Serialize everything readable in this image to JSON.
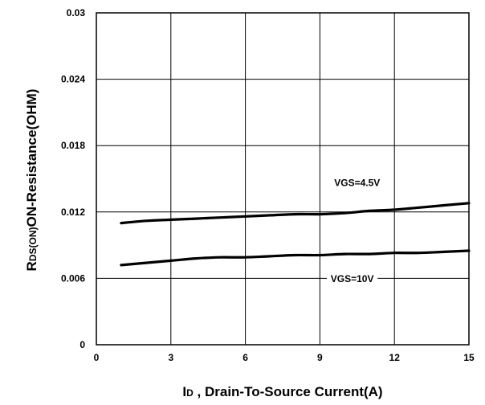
{
  "chart_data": {
    "type": "line",
    "title": "",
    "xlabel": {
      "main": "I",
      "sub": "D",
      "rest": " , Drain-To-Source Current(A)"
    },
    "ylabel": {
      "main": "R",
      "sub": "DS(ON)",
      "rest": "ON-Resistance(OHM)"
    },
    "xlim": [
      0,
      15
    ],
    "ylim": [
      0,
      0.03
    ],
    "xticks": [
      "0",
      "3",
      "6",
      "9",
      "12",
      "15"
    ],
    "yticks": [
      "0",
      "0.006",
      "0.012",
      "0.018",
      "0.024",
      "0.03"
    ],
    "grid": true,
    "series": [
      {
        "name": "VGS=4.5V",
        "x": [
          1,
          2,
          3,
          4,
          5,
          6,
          7,
          8,
          9,
          10,
          11,
          12,
          13,
          14,
          15
        ],
        "y": [
          0.011,
          0.0112,
          0.0113,
          0.0114,
          0.0115,
          0.0116,
          0.0117,
          0.0118,
          0.0118,
          0.0119,
          0.0121,
          0.0122,
          0.0124,
          0.0126,
          0.0128
        ]
      },
      {
        "name": "VGS=10V",
        "x": [
          1,
          2,
          3,
          4,
          5,
          6,
          7,
          8,
          9,
          10,
          11,
          12,
          13,
          14,
          15
        ],
        "y": [
          0.0072,
          0.0074,
          0.0076,
          0.0078,
          0.0079,
          0.0079,
          0.008,
          0.0081,
          0.0081,
          0.0082,
          0.0082,
          0.0083,
          0.0083,
          0.0084,
          0.0085
        ]
      }
    ],
    "annotations": [
      {
        "text": "VGS=4.5V",
        "x": 10.5,
        "y": 0.0145
      },
      {
        "text": "VGS=10V",
        "x": 10.3,
        "y": 0.0058
      }
    ]
  }
}
